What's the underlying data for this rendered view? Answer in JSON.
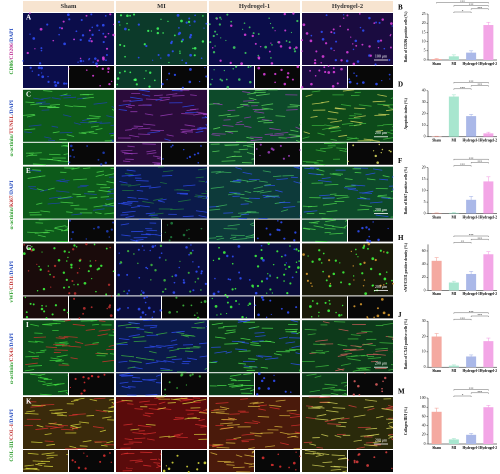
{
  "figure": {
    "columns": [
      "Sham",
      "MI",
      "Hydrogel-1",
      "Hydrogel-2"
    ],
    "rows": [
      {
        "letter": "A",
        "stain": [
          {
            "text": "CD86",
            "color": "#2e9e2e"
          },
          {
            "text": "/",
            "color": "#2e9e2e"
          },
          {
            "text": "CD206",
            "color": "#c0399a"
          },
          {
            "text": "/DAPI",
            "color": "#2a4fc0"
          }
        ],
        "scale_bar": "100 μm"
      },
      {
        "letter": "C",
        "stain": [
          {
            "text": "α-actinin",
            "color": "#2e9e2e"
          },
          {
            "text": "/",
            "color": "#2e9e2e"
          },
          {
            "text": "TUNEL",
            "color": "#c03030"
          },
          {
            "text": "/DAPI",
            "color": "#2a4fc0"
          }
        ],
        "scale_bar": "200 μm"
      },
      {
        "letter": "E",
        "stain": [
          {
            "text": "α-actinin",
            "color": "#2e9e2e"
          },
          {
            "text": "/",
            "color": "#2e9e2e"
          },
          {
            "text": "Ki67",
            "color": "#c03030"
          },
          {
            "text": "/DAPI",
            "color": "#2a4fc0"
          }
        ],
        "scale_bar": "200 μm"
      },
      {
        "letter": "G",
        "stain": [
          {
            "text": "vWF",
            "color": "#2e9e2e"
          },
          {
            "text": "/",
            "color": "#2e9e2e"
          },
          {
            "text": "CD31",
            "color": "#c03030"
          },
          {
            "text": "/DAPI",
            "color": "#2a4fc0"
          }
        ],
        "scale_bar": "200 μm"
      },
      {
        "letter": "I",
        "stain": [
          {
            "text": "α-actinin",
            "color": "#2e9e2e"
          },
          {
            "text": "/",
            "color": "#2e9e2e"
          },
          {
            "text": "CX43",
            "color": "#c03030"
          },
          {
            "text": "/DAPI",
            "color": "#2a4fc0"
          }
        ],
        "scale_bar": "200 μm"
      },
      {
        "letter": "K",
        "stain": [
          {
            "text": "COL-III",
            "color": "#2e9e2e"
          },
          {
            "text": "/",
            "color": "#2e9e2e"
          },
          {
            "text": "COL-I",
            "color": "#c03030"
          },
          {
            "text": "/DAPI",
            "color": "#2a4fc0"
          }
        ],
        "scale_bar": "200 μm"
      }
    ]
  },
  "chart_data": [
    {
      "type": "bar",
      "title": "B",
      "y_label": "Ratio of CD206 positive cells (%)",
      "categories": [
        "Sham",
        "MI",
        "Hydrogel-1",
        "Hydrogel-2"
      ],
      "values": [
        0.5,
        2,
        4,
        19
      ],
      "errors": [
        0.3,
        0.8,
        1,
        1.5
      ],
      "colors": [
        "#f4a9a0",
        "#a8e6cf",
        "#aab8e8",
        "#f3a6e6"
      ],
      "ylim": [
        0,
        25
      ],
      "yticks": [
        0,
        5,
        10,
        15,
        20,
        25
      ],
      "significance": [
        {
          "pair": [
            1,
            2
          ],
          "label": "*"
        },
        {
          "pair": [
            2,
            3
          ],
          "label": "***"
        },
        {
          "pair": [
            1,
            3
          ],
          "label": "***"
        },
        {
          "pair": [
            0,
            3
          ],
          "label": "***"
        }
      ]
    },
    {
      "type": "bar",
      "title": "D",
      "y_label": "Apoptotic index (%)",
      "categories": [
        "Sham",
        "MI",
        "Hydrogel-1",
        "Hydrogel-2"
      ],
      "values": [
        0.3,
        35,
        18,
        3
      ],
      "errors": [
        0.2,
        1.5,
        1.5,
        1
      ],
      "colors": [
        "#f4a9a0",
        "#a8e6cf",
        "#aab8e8",
        "#f3a6e6"
      ],
      "ylim": [
        0,
        40
      ],
      "yticks": [
        0,
        10,
        20,
        30,
        40
      ],
      "significance": [
        {
          "pair": [
            1,
            2
          ],
          "label": "***"
        },
        {
          "pair": [
            2,
            3
          ],
          "label": "***"
        },
        {
          "pair": [
            1,
            3
          ],
          "label": "***"
        }
      ]
    },
    {
      "type": "bar",
      "title": "F",
      "y_label": "Ratio of Ki67 positive cells (%)",
      "categories": [
        "Sham",
        "MI",
        "Hydrogel-1",
        "Hydrogel-2"
      ],
      "values": [
        0.2,
        0.3,
        6,
        14
      ],
      "errors": [
        0.1,
        0.2,
        1.5,
        2
      ],
      "colors": [
        "#f4a9a0",
        "#a8e6cf",
        "#aab8e8",
        "#f3a6e6"
      ],
      "ylim": [
        0,
        20
      ],
      "yticks": [
        0,
        5,
        10,
        15,
        20
      ],
      "significance": [
        {
          "pair": [
            1,
            2
          ],
          "label": "***"
        },
        {
          "pair": [
            2,
            3
          ],
          "label": "***"
        },
        {
          "pair": [
            1,
            3
          ],
          "label": "***"
        }
      ]
    },
    {
      "type": "bar",
      "title": "H",
      "y_label": "vWF/CD31 positive density (%)",
      "categories": [
        "Sham",
        "MI",
        "Hydrogel-1",
        "Hydrogel-2"
      ],
      "values": [
        45,
        12,
        25,
        55
      ],
      "errors": [
        5,
        2,
        4,
        4
      ],
      "colors": [
        "#f4a9a0",
        "#a8e6cf",
        "#aab8e8",
        "#f3a6e6"
      ],
      "ylim": [
        0,
        70
      ],
      "yticks": [
        0,
        20,
        40,
        60
      ],
      "significance": [
        {
          "pair": [
            1,
            2
          ],
          "label": "**"
        },
        {
          "pair": [
            2,
            3
          ],
          "label": "***"
        },
        {
          "pair": [
            1,
            3
          ],
          "label": "***"
        }
      ]
    },
    {
      "type": "bar",
      "title": "J",
      "y_label": "Ratios of CX43 positive cells (%)",
      "categories": [
        "Sham",
        "MI",
        "Hydrogel-1",
        "Hydrogel-2"
      ],
      "values": [
        20,
        1,
        7,
        17
      ],
      "errors": [
        2,
        0.5,
        1,
        2
      ],
      "colors": [
        "#f4a9a0",
        "#a8e6cf",
        "#aab8e8",
        "#f3a6e6"
      ],
      "ylim": [
        0,
        30
      ],
      "yticks": [
        0,
        10,
        20,
        30
      ],
      "significance": [
        {
          "pair": [
            1,
            2
          ],
          "label": "***"
        },
        {
          "pair": [
            2,
            3
          ],
          "label": "***"
        },
        {
          "pair": [
            1,
            3
          ],
          "label": "***"
        }
      ]
    },
    {
      "type": "bar",
      "title": "M",
      "y_label": "Collagen III/I (%)",
      "categories": [
        "Sham",
        "MI",
        "Hydrogel-1",
        "Hydrogel-2"
      ],
      "values": [
        70,
        10,
        20,
        80
      ],
      "errors": [
        8,
        2,
        3,
        4
      ],
      "colors": [
        "#f4a9a0",
        "#a8e6cf",
        "#aab8e8",
        "#f3a6e6"
      ],
      "ylim": [
        0,
        100
      ],
      "yticks": [
        0,
        20,
        40,
        60,
        80,
        100
      ],
      "significance": [
        {
          "pair": [
            1,
            2
          ],
          "label": "*"
        },
        {
          "pair": [
            2,
            3
          ],
          "label": "***"
        },
        {
          "pair": [
            1,
            3
          ],
          "label": "***"
        }
      ]
    }
  ]
}
